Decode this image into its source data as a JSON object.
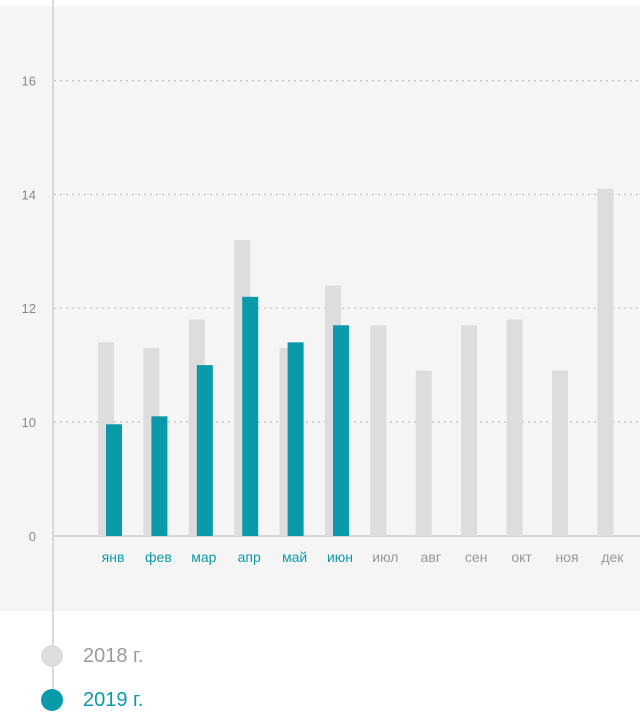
{
  "colors": {
    "y2018": "#dddddd",
    "y2019": "#0b9aa9",
    "axis": "#cfcfcf",
    "grid": "#c4c4c4",
    "tick": "#888888",
    "panel": "#f5f5f5"
  },
  "legend": [
    {
      "label": "2018 г.",
      "color": "#dddddd",
      "text_color": "#9a9a9a"
    },
    {
      "label": "2019 г.",
      "color": "#0b9aa9",
      "text_color": "#0b9aa9"
    }
  ],
  "chart_data": {
    "type": "bar",
    "categories": [
      "янв",
      "фев",
      "мар",
      "апр",
      "май",
      "июн",
      "июл",
      "авг",
      "сен",
      "окт",
      "ноя",
      "дек"
    ],
    "category_label_colors": [
      "#0b9aa9",
      "#0b9aa9",
      "#0b9aa9",
      "#0b9aa9",
      "#0b9aa9",
      "#0b9aa9",
      "#999999",
      "#999999",
      "#999999",
      "#999999",
      "#999999",
      "#999999"
    ],
    "series": [
      {
        "name": "2018 г.",
        "values": [
          11.4,
          11.3,
          11.8,
          13.2,
          11.3,
          12.4,
          11.7,
          10.9,
          11.7,
          11.8,
          10.9,
          14.1
        ]
      },
      {
        "name": "2019 г.",
        "values": [
          9.8,
          10.1,
          11.0,
          12.2,
          11.4,
          11.7,
          null,
          null,
          null,
          null,
          null,
          null
        ]
      }
    ],
    "yticks": [
      0,
      10,
      12,
      14,
      16
    ],
    "ylim_broken": true,
    "grid": true
  }
}
